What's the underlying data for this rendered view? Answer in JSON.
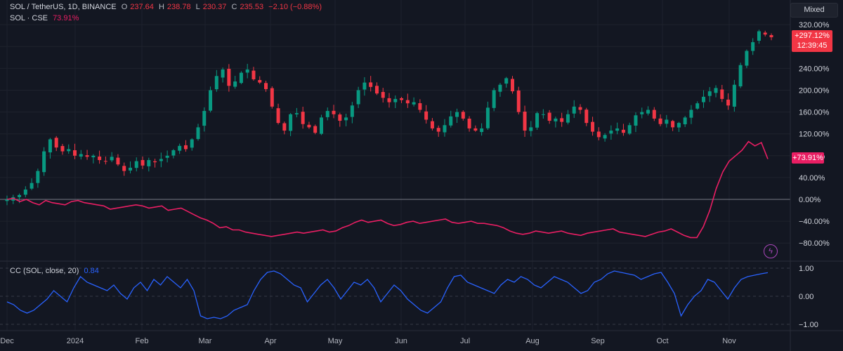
{
  "header": {
    "symbol": "SOL / TetherUS, 1D, BINANCE",
    "o_label": "O",
    "o_value": "237.64",
    "h_label": "H",
    "h_value": "238.78",
    "l_label": "L",
    "l_value": "230.37",
    "c_label": "C",
    "c_value": "235.53",
    "change": "−2.10 (−0.88%)"
  },
  "compare": {
    "label": "SOL · CSE",
    "value": "73.91%"
  },
  "indicator": {
    "label": "CC (SOL, close, 20)",
    "value": "0.84"
  },
  "scale_mode": "Mixed",
  "price_tag": {
    "change": "+297.12%",
    "countdown": "12:39:45"
  },
  "cse_tag": "+73.91%",
  "flash_icon": "lightning-icon",
  "colors": {
    "up": "#089981",
    "down": "#f23645",
    "cse": "#e91e63",
    "cc": "#2962ff",
    "bg": "#131722",
    "grid": "#1e222d"
  },
  "chart_data": [
    {
      "type": "candlestick",
      "y_unit": "percent change",
      "ylim": [
        -100,
        330
      ],
      "yticks": [
        "320.00%",
        "280.00%",
        "240.00%",
        "200.00%",
        "160.00%",
        "120.00%",
        "80.00%",
        "40.00%",
        "0.00%",
        "−40.00%",
        "−80.00%"
      ],
      "ytick_values": [
        320,
        280,
        240,
        200,
        160,
        120,
        80,
        40,
        0,
        -40,
        -80
      ],
      "xticks": [
        "Dec",
        "2024",
        "Feb",
        "Mar",
        "Apr",
        "May",
        "Jun",
        "Jul",
        "Aug",
        "Sep",
        "Oct",
        "Nov"
      ],
      "sol_close_pct": [
        0,
        4,
        8,
        18,
        30,
        52,
        88,
        110,
        95,
        88,
        92,
        80,
        83,
        78,
        80,
        72,
        70,
        78,
        64,
        52,
        58,
        70,
        62,
        72,
        68,
        74,
        80,
        90,
        98,
        92,
        110,
        132,
        162,
        200,
        226,
        238,
        208,
        216,
        232,
        238,
        220,
        214,
        202,
        170,
        140,
        126,
        156,
        158,
        138,
        132,
        122,
        150,
        162,
        156,
        144,
        150,
        172,
        200,
        214,
        206,
        194,
        186,
        178,
        184,
        182,
        176,
        178,
        164,
        146,
        130,
        124,
        136,
        152,
        160,
        148,
        130,
        126,
        130,
        168,
        200,
        210,
        222,
        198,
        160,
        126,
        132,
        158,
        156,
        144,
        148,
        142,
        156,
        170,
        164,
        140,
        124,
        114,
        118,
        126,
        130,
        122,
        136,
        154,
        160,
        164,
        148,
        138,
        146,
        132,
        140,
        150,
        164,
        176,
        188,
        198,
        204,
        184,
        172,
        210,
        246,
        272,
        288,
        308,
        302,
        297
      ],
      "cse_pct": [
        0,
        2,
        -4,
        0,
        -6,
        -10,
        -2,
        -6,
        -8,
        -10,
        -4,
        -2,
        -6,
        -8,
        -10,
        -12,
        -18,
        -16,
        -14,
        -12,
        -10,
        -12,
        -16,
        -14,
        -12,
        -20,
        -18,
        -16,
        -22,
        -28,
        -34,
        -38,
        -44,
        -52,
        -50,
        -56,
        -56,
        -60,
        -62,
        -64,
        -66,
        -68,
        -66,
        -64,
        -62,
        -60,
        -62,
        -60,
        -58,
        -56,
        -60,
        -58,
        -52,
        -48,
        -42,
        -38,
        -42,
        -40,
        -38,
        -44,
        -48,
        -46,
        -42,
        -40,
        -44,
        -42,
        -40,
        -38,
        -36,
        -42,
        -44,
        -42,
        -40,
        -44,
        -44,
        -46,
        -48,
        -52,
        -58,
        -62,
        -64,
        -62,
        -58,
        -60,
        -62,
        -60,
        -58,
        -62,
        -64,
        -66,
        -62,
        -60,
        -58,
        -56,
        -54,
        -60,
        -62,
        -64,
        -66,
        -68,
        -64,
        -60,
        -58,
        -54,
        -60,
        -66,
        -70,
        -70,
        -50,
        -20,
        20,
        50,
        70,
        80,
        90,
        106,
        98,
        104,
        74
      ],
      "series": [
        {
          "name": "SOL / TetherUS"
        },
        {
          "name": "SOL · CSE"
        }
      ]
    },
    {
      "type": "line",
      "name": "CC (SOL, close, 20)",
      "ylim": [
        -1.1,
        1.1
      ],
      "yticks": [
        "1.00",
        "0.00",
        "−1.00"
      ],
      "ytick_values": [
        1,
        0,
        -1
      ],
      "values": [
        -0.2,
        -0.3,
        -0.5,
        -0.6,
        -0.5,
        -0.3,
        -0.1,
        0.2,
        0.0,
        -0.2,
        0.3,
        0.7,
        0.5,
        0.4,
        0.3,
        0.2,
        0.4,
        0.1,
        -0.1,
        0.3,
        0.5,
        0.2,
        0.6,
        0.4,
        0.7,
        0.5,
        0.3,
        0.6,
        0.2,
        -0.7,
        -0.8,
        -0.75,
        -0.8,
        -0.7,
        -0.5,
        -0.4,
        -0.3,
        0.2,
        0.6,
        0.85,
        0.9,
        0.8,
        0.6,
        0.4,
        0.3,
        -0.2,
        0.1,
        0.4,
        0.6,
        0.3,
        -0.1,
        0.2,
        0.5,
        0.4,
        0.6,
        0.3,
        -0.2,
        0.1,
        0.4,
        0.2,
        -0.1,
        -0.3,
        -0.5,
        -0.6,
        -0.4,
        -0.2,
        0.3,
        0.7,
        0.75,
        0.5,
        0.4,
        0.3,
        0.2,
        0.1,
        0.4,
        0.6,
        0.5,
        0.7,
        0.6,
        0.4,
        0.3,
        0.5,
        0.7,
        0.6,
        0.5,
        0.3,
        0.1,
        0.2,
        0.5,
        0.6,
        0.8,
        0.9,
        0.85,
        0.8,
        0.75,
        0.6,
        0.7,
        0.8,
        0.85,
        0.5,
        0.1,
        -0.7,
        -0.3,
        0.0,
        0.2,
        0.6,
        0.5,
        0.2,
        -0.1,
        0.3,
        0.6,
        0.7,
        0.75,
        0.8,
        0.84
      ]
    }
  ]
}
